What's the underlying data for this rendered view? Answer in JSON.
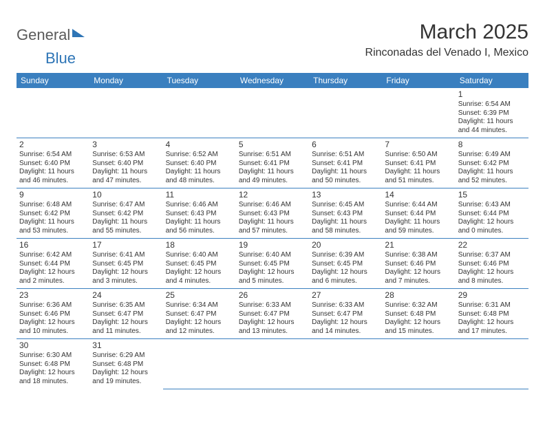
{
  "brand": {
    "part1": "General",
    "part2": "Blue"
  },
  "title": "March 2025",
  "location": "Rinconadas del Venado I, Mexico",
  "calendar": {
    "header_bg": "#3a7fbf",
    "header_fg": "#ffffff",
    "border_color": "#3a7fbf",
    "day_headers": [
      "Sunday",
      "Monday",
      "Tuesday",
      "Wednesday",
      "Thursday",
      "Friday",
      "Saturday"
    ],
    "first_weekday_index": 6,
    "days": [
      {
        "n": 1,
        "sunrise": "6:54 AM",
        "sunset": "6:39 PM",
        "daylight": "11 hours and 44 minutes."
      },
      {
        "n": 2,
        "sunrise": "6:54 AM",
        "sunset": "6:40 PM",
        "daylight": "11 hours and 46 minutes."
      },
      {
        "n": 3,
        "sunrise": "6:53 AM",
        "sunset": "6:40 PM",
        "daylight": "11 hours and 47 minutes."
      },
      {
        "n": 4,
        "sunrise": "6:52 AM",
        "sunset": "6:40 PM",
        "daylight": "11 hours and 48 minutes."
      },
      {
        "n": 5,
        "sunrise": "6:51 AM",
        "sunset": "6:41 PM",
        "daylight": "11 hours and 49 minutes."
      },
      {
        "n": 6,
        "sunrise": "6:51 AM",
        "sunset": "6:41 PM",
        "daylight": "11 hours and 50 minutes."
      },
      {
        "n": 7,
        "sunrise": "6:50 AM",
        "sunset": "6:41 PM",
        "daylight": "11 hours and 51 minutes."
      },
      {
        "n": 8,
        "sunrise": "6:49 AM",
        "sunset": "6:42 PM",
        "daylight": "11 hours and 52 minutes."
      },
      {
        "n": 9,
        "sunrise": "6:48 AM",
        "sunset": "6:42 PM",
        "daylight": "11 hours and 53 minutes."
      },
      {
        "n": 10,
        "sunrise": "6:47 AM",
        "sunset": "6:42 PM",
        "daylight": "11 hours and 55 minutes."
      },
      {
        "n": 11,
        "sunrise": "6:46 AM",
        "sunset": "6:43 PM",
        "daylight": "11 hours and 56 minutes."
      },
      {
        "n": 12,
        "sunrise": "6:46 AM",
        "sunset": "6:43 PM",
        "daylight": "11 hours and 57 minutes."
      },
      {
        "n": 13,
        "sunrise": "6:45 AM",
        "sunset": "6:43 PM",
        "daylight": "11 hours and 58 minutes."
      },
      {
        "n": 14,
        "sunrise": "6:44 AM",
        "sunset": "6:44 PM",
        "daylight": "11 hours and 59 minutes."
      },
      {
        "n": 15,
        "sunrise": "6:43 AM",
        "sunset": "6:44 PM",
        "daylight": "12 hours and 0 minutes."
      },
      {
        "n": 16,
        "sunrise": "6:42 AM",
        "sunset": "6:44 PM",
        "daylight": "12 hours and 2 minutes."
      },
      {
        "n": 17,
        "sunrise": "6:41 AM",
        "sunset": "6:45 PM",
        "daylight": "12 hours and 3 minutes."
      },
      {
        "n": 18,
        "sunrise": "6:40 AM",
        "sunset": "6:45 PM",
        "daylight": "12 hours and 4 minutes."
      },
      {
        "n": 19,
        "sunrise": "6:40 AM",
        "sunset": "6:45 PM",
        "daylight": "12 hours and 5 minutes."
      },
      {
        "n": 20,
        "sunrise": "6:39 AM",
        "sunset": "6:45 PM",
        "daylight": "12 hours and 6 minutes."
      },
      {
        "n": 21,
        "sunrise": "6:38 AM",
        "sunset": "6:46 PM",
        "daylight": "12 hours and 7 minutes."
      },
      {
        "n": 22,
        "sunrise": "6:37 AM",
        "sunset": "6:46 PM",
        "daylight": "12 hours and 8 minutes."
      },
      {
        "n": 23,
        "sunrise": "6:36 AM",
        "sunset": "6:46 PM",
        "daylight": "12 hours and 10 minutes."
      },
      {
        "n": 24,
        "sunrise": "6:35 AM",
        "sunset": "6:47 PM",
        "daylight": "12 hours and 11 minutes."
      },
      {
        "n": 25,
        "sunrise": "6:34 AM",
        "sunset": "6:47 PM",
        "daylight": "12 hours and 12 minutes."
      },
      {
        "n": 26,
        "sunrise": "6:33 AM",
        "sunset": "6:47 PM",
        "daylight": "12 hours and 13 minutes."
      },
      {
        "n": 27,
        "sunrise": "6:33 AM",
        "sunset": "6:47 PM",
        "daylight": "12 hours and 14 minutes."
      },
      {
        "n": 28,
        "sunrise": "6:32 AM",
        "sunset": "6:48 PM",
        "daylight": "12 hours and 15 minutes."
      },
      {
        "n": 29,
        "sunrise": "6:31 AM",
        "sunset": "6:48 PM",
        "daylight": "12 hours and 17 minutes."
      },
      {
        "n": 30,
        "sunrise": "6:30 AM",
        "sunset": "6:48 PM",
        "daylight": "12 hours and 18 minutes."
      },
      {
        "n": 31,
        "sunrise": "6:29 AM",
        "sunset": "6:48 PM",
        "daylight": "12 hours and 19 minutes."
      }
    ]
  }
}
